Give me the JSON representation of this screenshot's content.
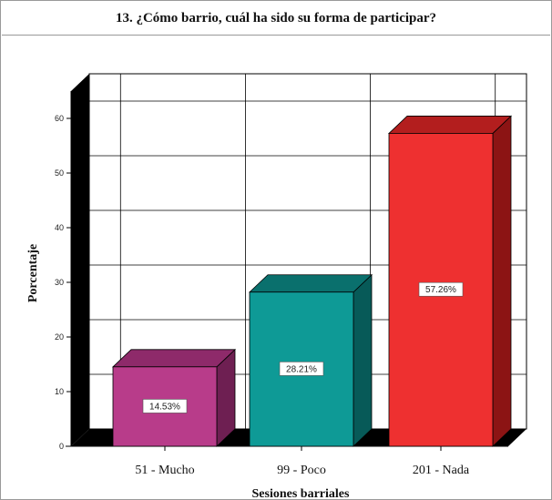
{
  "chart_data": {
    "type": "bar",
    "title": "13. ¿Cómo barrio, cuál ha sido su forma de participar?",
    "xlabel": "Sesiones barriales",
    "ylabel": "Porcentaje",
    "categories": [
      "51 - Mucho",
      "99 - Poco",
      "201 - Nada"
    ],
    "values": [
      14.53,
      28.21,
      57.26
    ],
    "data_labels": [
      "14.53%",
      "28.21%",
      "57.26%"
    ],
    "yticks": [
      "0",
      "10",
      "20",
      "30",
      "40",
      "50",
      "60"
    ],
    "ylim": [
      0,
      65
    ],
    "grid": true,
    "style": "3d",
    "colors": [
      "#b83c8a",
      "#0e9a96",
      "#ee3030"
    ],
    "side_colors": [
      "#6e1f52",
      "#075a58",
      "#8c1414"
    ],
    "top_colors": [
      "#8e2a6a",
      "#0a706d",
      "#b31e1e"
    ]
  }
}
